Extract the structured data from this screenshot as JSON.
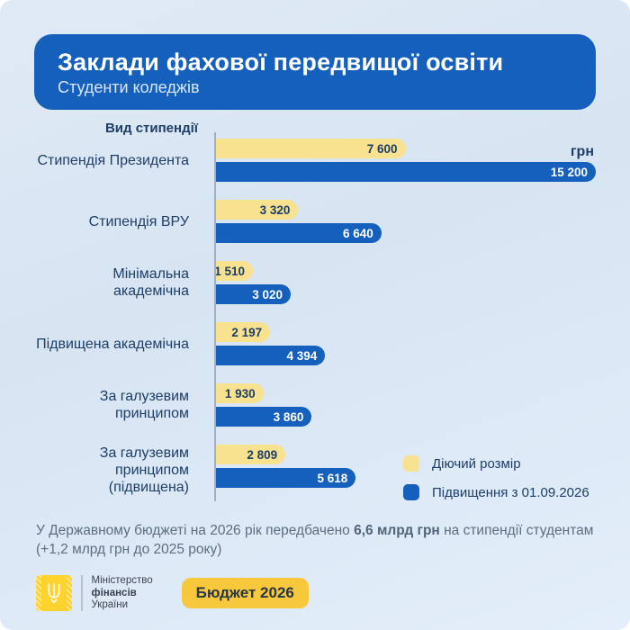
{
  "header": {
    "title": "Заклади фахової передвищої освіти",
    "subtitle": "Студенти коледжів"
  },
  "chart_data": {
    "type": "bar",
    "orientation": "horizontal",
    "title": "Вид стипендії",
    "unit": "грн",
    "xlim": [
      0,
      15200
    ],
    "grid": false,
    "legend_position": "bottom-right",
    "categories": [
      "Стипендія Президента",
      "Стипендія ВРУ",
      "Мінімальна академічна",
      "Підвищена академічна",
      "За галузевим принципом",
      "За галузевим принципом (підвищена)"
    ],
    "series": [
      {
        "name": "Діючий розмір",
        "color": "#F8E18F",
        "values": [
          7600,
          3320,
          1510,
          2197,
          1930,
          2809
        ],
        "labels": [
          "7 600",
          "3 320",
          "1 510",
          "2 197",
          "1 930",
          "2 809"
        ]
      },
      {
        "name": "Підвищення з 01.09.2026",
        "color": "#1560BD",
        "values": [
          15200,
          6640,
          3020,
          4394,
          3860,
          5618
        ],
        "labels": [
          "15 200",
          "6 640",
          "3 020",
          "4 394",
          "3 860",
          "5 618"
        ]
      }
    ]
  },
  "footer_note": {
    "prefix": "У Державному бюджеті на 2026 рік передбачено ",
    "bold": "6,6 млрд грн",
    "suffix": " на стипендії студентам (+1,2 млрд грн до 2025 року)"
  },
  "branding": {
    "ministry_lines": [
      "Міністерство",
      "фінансів",
      "України"
    ],
    "badge_label": "Бюджет 2026"
  },
  "colors": {
    "background": "#DCE8F5",
    "primary_blue": "#1560BD",
    "soft_yellow": "#F8E18F",
    "badge_yellow": "#F7C83B",
    "logo_yellow": "#FFD32E",
    "text_navy": "#1D3E66",
    "text_gray": "#5C6E80",
    "axis_gray": "#9FB0C2"
  }
}
